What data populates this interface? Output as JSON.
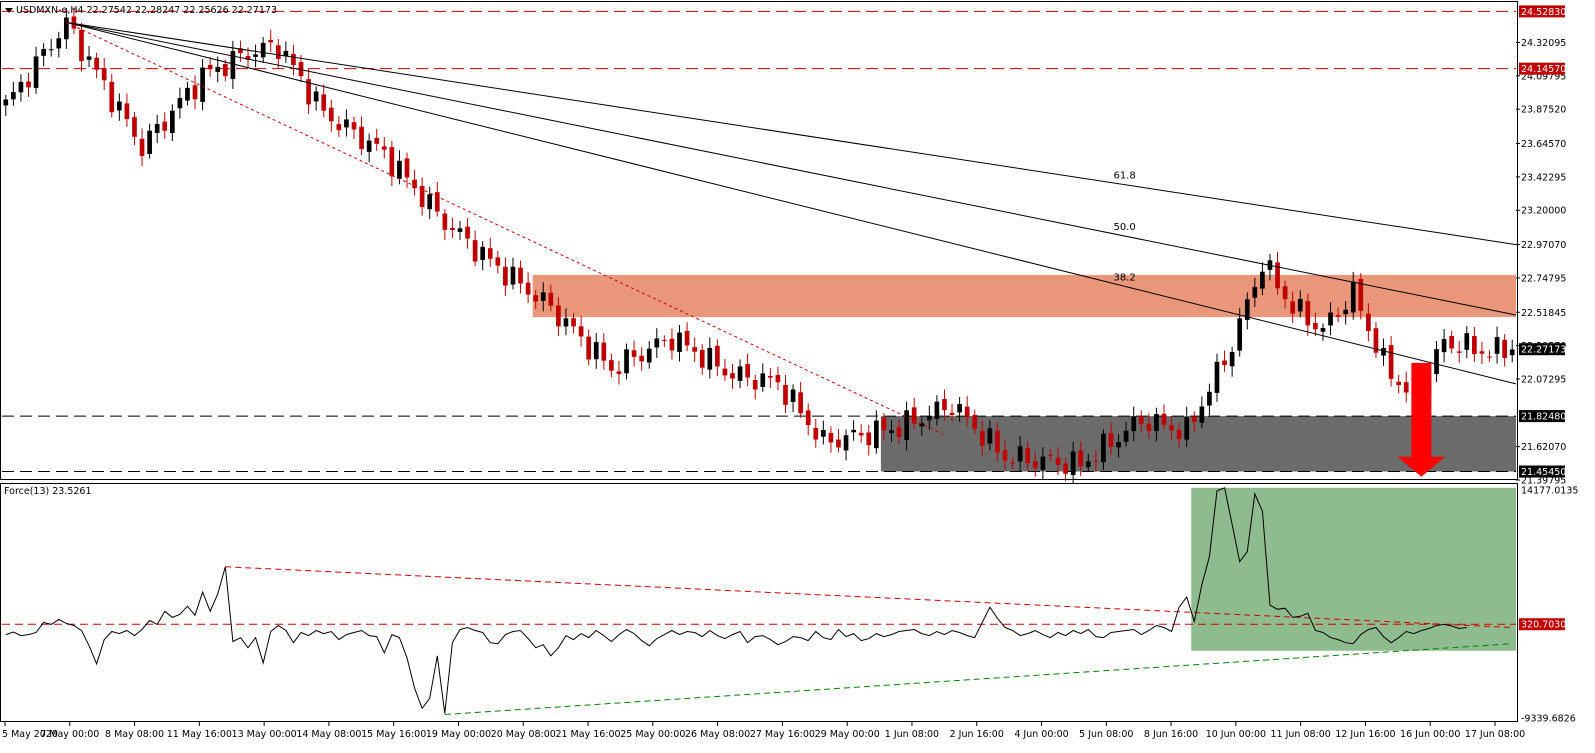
{
  "header": {
    "main": "USDMXN-e,H4  22.27542 22.28247 22.25626 22.27173",
    "force": "Force(13) 23.5261"
  },
  "colors": {
    "bull": "#000000",
    "bear": "#c00000",
    "resistance_zone": "#e9967a",
    "support_zone": "#6b6b6b",
    "force_zone": "#8fbc8f",
    "level_line": "#d00000",
    "arrow": "#ff0000",
    "tag_red": "#c00000",
    "tag_black": "#000000"
  },
  "chart_data": [
    {
      "type": "candlestick",
      "title": "USDMXN-e,H4",
      "ylim": [
        21.3979,
        24.5912
      ],
      "yticks": [
        "24.32095",
        "24.09795",
        "23.87520",
        "23.64570",
        "23.42295",
        "23.20000",
        "22.97070",
        "22.74795",
        "22.51845",
        "22.29570",
        "22.07295",
        "21.62070",
        "21.39795"
      ],
      "xticks": [
        "5 May 2020",
        "7 May 00:00",
        "8 May 08:00",
        "11 May 16:00",
        "13 May 00:00",
        "14 May 08:00",
        "15 May 16:00",
        "19 May 00:00",
        "20 May 08:00",
        "21 May 16:00",
        "25 May 00:00",
        "26 May 08:00",
        "27 May 16:00",
        "29 May 00:00",
        "1 Jun 08:00",
        "2 Jun 16:00",
        "4 Jun 00:00",
        "5 Jun 08:00",
        "8 Jun 16:00",
        "10 Jun 00:00",
        "11 Jun 08:00",
        "12 Jun 16:00",
        "16 Jun 00:00",
        "17 Jun 08:00"
      ],
      "waypoints": [
        [
          0,
          23.9
        ],
        [
          8,
          24.45
        ],
        [
          18,
          23.62
        ],
        [
          26,
          24.1
        ],
        [
          32,
          24.25
        ],
        [
          36,
          24.3
        ],
        [
          42,
          23.85
        ],
        [
          50,
          23.58
        ],
        [
          58,
          23.12
        ],
        [
          64,
          22.86
        ],
        [
          72,
          22.55
        ],
        [
          80,
          22.14
        ],
        [
          88,
          22.35
        ],
        [
          96,
          22.1
        ],
        [
          102,
          22.05
        ],
        [
          108,
          21.65
        ],
        [
          118,
          21.75
        ],
        [
          125,
          21.9
        ],
        [
          132,
          21.55
        ],
        [
          142,
          21.5
        ],
        [
          150,
          21.8
        ],
        [
          156,
          21.72
        ],
        [
          162,
          22.3
        ],
        [
          166,
          22.85
        ],
        [
          170,
          22.55
        ],
        [
          174,
          22.4
        ],
        [
          178,
          22.65
        ],
        [
          182,
          22.18
        ],
        [
          186,
          21.93
        ],
        [
          190,
          22.32
        ],
        [
          196,
          22.25
        ],
        [
          198,
          22.27
        ]
      ],
      "last_price": "22.27173",
      "levels": [
        {
          "value": 24.5283,
          "label": "24.52830",
          "style": "dash-red",
          "tag": "red"
        },
        {
          "value": 24.1457,
          "label": "24.14570",
          "style": "dash-red",
          "tag": "red"
        },
        {
          "value": 21.8248,
          "label": "21.82480",
          "style": "dash-black",
          "tag": "black"
        },
        {
          "value": 21.4545,
          "label": "21.45450",
          "style": "dash-black",
          "tag": "black"
        }
      ],
      "zones": [
        {
          "name": "resistance",
          "from_bar": 70,
          "y_top": 22.768,
          "y_bot": 22.486
        },
        {
          "name": "support",
          "from_bar": 116,
          "y_top": 21.8248,
          "y_bot": 21.4545
        }
      ],
      "fib_fan": {
        "origin": {
          "bar": 8,
          "price": 24.455
        },
        "lines": [
          {
            "label": "61.8",
            "end_price": 22.97
          },
          {
            "label": "50.0",
            "end_price": 22.5
          },
          {
            "label": "38.2",
            "end_price": 22.04
          }
        ]
      },
      "red_trendline": {
        "from": {
          "bar": 8,
          "price": 24.455
        },
        "to": {
          "bar": 124,
          "price": 21.7
        }
      },
      "arrow": {
        "bar": 187,
        "from_price": 22.18,
        "to_price": 21.42
      }
    },
    {
      "type": "line",
      "title": "Force(13) 23.5261",
      "ylim": [
        -9339.6826,
        14177.0135
      ],
      "yticks": [
        "14177.0135",
        "320.7030",
        "-9339.6826"
      ],
      "zero_level": {
        "value": 320.703,
        "label": "320.7030"
      },
      "values": [
        -700,
        -450,
        -800,
        -700,
        -500,
        500,
        300,
        800,
        400,
        200,
        -300,
        -1800,
        -3600,
        -1200,
        -400,
        -600,
        -300,
        -800,
        -200,
        700,
        300,
        1600,
        1000,
        1300,
        2100,
        1200,
        3500,
        1600,
        3300,
        6000,
        -1400,
        -1000,
        -2000,
        -1000,
        -3500,
        -400,
        200,
        -300,
        -1500,
        -500,
        -800,
        -300,
        -600,
        -400,
        -1200,
        -700,
        -500,
        -300,
        -800,
        -900,
        -2500,
        -700,
        -1000,
        -3000,
        -6000,
        -8000,
        -7000,
        -2800,
        -8500,
        -1500,
        -200,
        0,
        -300,
        -500,
        -1500,
        -1600,
        -700,
        -400,
        -300,
        -1100,
        -2000,
        -1700,
        -2800,
        -2000,
        -800,
        -1200,
        -600,
        -1000,
        -300,
        -800,
        -1400,
        -700,
        -200,
        -600,
        -1300,
        -1800,
        -1100,
        -700,
        -300,
        -700,
        -400,
        -500,
        -900,
        -300,
        -800,
        -1100,
        -700,
        -400,
        -1500,
        -900,
        -800,
        -1200,
        -1700,
        -1400,
        -900,
        -1000,
        -1300,
        -400,
        -1000,
        -1200,
        -200,
        -900,
        -600,
        -1300,
        -1100,
        -600,
        -900,
        -700,
        -400,
        -300,
        -200,
        -600,
        -800,
        -400,
        -700,
        -300,
        -500,
        -800,
        -1000,
        500,
        2000,
        900,
        0,
        -300,
        -800,
        -600,
        -300,
        -700,
        -1000,
        -500,
        -800,
        -300,
        -600,
        -200,
        -900,
        -1000,
        -500,
        -400,
        -300,
        -200,
        -700,
        -300,
        200,
        0,
        -400,
        2000,
        3000,
        600,
        4200,
        7000,
        13500,
        13800,
        10200,
        6500,
        7500,
        13200,
        11500,
        2200,
        1800,
        1900,
        1000,
        1100,
        1400,
        -300,
        -500,
        -1000,
        -1200,
        -1500,
        -1600,
        -700,
        -200,
        0,
        -900,
        -1500,
        -1000,
        -400,
        -600,
        -300,
        -100,
        200,
        300,
        150,
        -100,
        0
      ],
      "zone": {
        "from_index": 157,
        "y_top": 13800,
        "y_bot": -2300
      },
      "red_trendline": {
        "from_index": 29,
        "from": 6000,
        "to_index": 199,
        "to": 0
      },
      "green_trendline": {
        "from_index": 58,
        "from": -8600,
        "to_index": 199,
        "to": -1600
      }
    }
  ]
}
